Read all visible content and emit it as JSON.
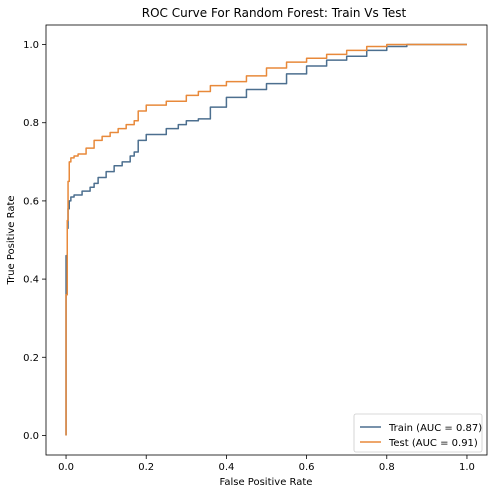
{
  "chart_data": {
    "type": "line",
    "title": "ROC Curve For Random Forest: Train Vs Test",
    "xlabel": "False Positive Rate",
    "ylabel": "True Positive Rate",
    "xlim": [
      -0.05,
      1.05
    ],
    "ylim": [
      -0.05,
      1.05
    ],
    "xticks": [
      0.0,
      0.2,
      0.4,
      0.6,
      0.8,
      1.0
    ],
    "yticks": [
      0.0,
      0.2,
      0.4,
      0.6,
      0.8,
      1.0
    ],
    "xtick_labels": [
      "0.0",
      "0.2",
      "0.4",
      "0.6",
      "0.8",
      "1.0"
    ],
    "ytick_labels": [
      "0.0",
      "0.2",
      "0.4",
      "0.6",
      "0.8",
      "1.0"
    ],
    "grid": false,
    "legend_position": "bottom-right",
    "series": [
      {
        "name": "Train (AUC = 0.87)",
        "color": "#4c6f8f",
        "x": [
          0.0,
          0.0,
          0.003,
          0.005,
          0.008,
          0.012,
          0.02,
          0.04,
          0.06,
          0.07,
          0.08,
          0.1,
          0.12,
          0.14,
          0.16,
          0.17,
          0.18,
          0.2,
          0.25,
          0.28,
          0.3,
          0.33,
          0.36,
          0.4,
          0.45,
          0.5,
          0.55,
          0.6,
          0.65,
          0.7,
          0.75,
          0.8,
          0.85,
          0.87,
          0.9,
          1.0
        ],
        "y": [
          0.0,
          0.46,
          0.53,
          0.58,
          0.6,
          0.61,
          0.615,
          0.625,
          0.635,
          0.645,
          0.66,
          0.675,
          0.69,
          0.7,
          0.715,
          0.725,
          0.755,
          0.77,
          0.785,
          0.795,
          0.805,
          0.81,
          0.84,
          0.865,
          0.885,
          0.9,
          0.925,
          0.945,
          0.96,
          0.97,
          0.985,
          0.995,
          1.0,
          1.0,
          1.0,
          1.0
        ]
      },
      {
        "name": "Test (AUC = 0.91)",
        "color": "#e8893a",
        "x": [
          0.0,
          0.0,
          0.003,
          0.005,
          0.008,
          0.012,
          0.02,
          0.03,
          0.05,
          0.07,
          0.09,
          0.11,
          0.13,
          0.15,
          0.17,
          0.18,
          0.2,
          0.25,
          0.3,
          0.33,
          0.36,
          0.4,
          0.45,
          0.5,
          0.55,
          0.6,
          0.65,
          0.7,
          0.75,
          0.8,
          0.85,
          0.9,
          1.0
        ],
        "y": [
          0.0,
          0.36,
          0.55,
          0.65,
          0.7,
          0.71,
          0.715,
          0.72,
          0.735,
          0.755,
          0.765,
          0.775,
          0.785,
          0.795,
          0.805,
          0.83,
          0.845,
          0.855,
          0.87,
          0.88,
          0.895,
          0.905,
          0.92,
          0.94,
          0.955,
          0.965,
          0.975,
          0.985,
          0.995,
          1.0,
          1.0,
          1.0,
          1.0
        ]
      }
    ]
  }
}
